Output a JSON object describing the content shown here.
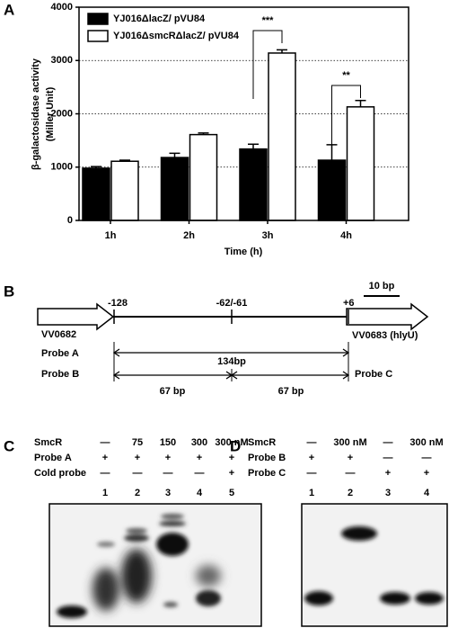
{
  "chart_data": {
    "type": "bar",
    "panel": "A",
    "ylabel": [
      "β-galactosidase activity",
      "(Miller Unit)"
    ],
    "xlabel": "Time (h)",
    "categories": [
      "1h",
      "2h",
      "3h",
      "4h"
    ],
    "series": [
      {
        "name": "YJ016ΔlacZ/ pVU84",
        "color": "#000000",
        "values": [
          980,
          1180,
          1340,
          1130
        ],
        "errors": [
          30,
          80,
          90,
          290
        ]
      },
      {
        "name": "YJ016ΔsmcRΔlacZ/ pVU84",
        "color": "#ffffff",
        "values": [
          1110,
          1610,
          3140,
          2130
        ],
        "errors": [
          20,
          30,
          60,
          120
        ]
      }
    ],
    "ylim": [
      0,
      4000
    ],
    "yticks": [
      0,
      1000,
      2000,
      3000,
      4000
    ],
    "grid": true,
    "annotations": [
      "***",
      "**"
    ]
  },
  "diagram": {
    "panel": "B",
    "scale_bar": "10 bp",
    "positions": [
      "-128",
      "-62/-61",
      "+6"
    ],
    "left_gene": "VV0682",
    "right_gene": "VV0683 (hlyU)",
    "probe_a": "Probe A",
    "probe_a_length": "134bp",
    "probe_b": "Probe B",
    "probe_b_halves": [
      "67 bp",
      "67 bp"
    ],
    "probe_c": "Probe C"
  },
  "gels": [
    {
      "panel": "C",
      "rows": [
        {
          "label": "SmcR",
          "cells": [
            "—",
            "75",
            "150",
            "300",
            "300 nM"
          ]
        },
        {
          "label": "Probe A",
          "cells": [
            "+",
            "+",
            "+",
            "+",
            "+"
          ]
        },
        {
          "label": "Cold probe",
          "cells": [
            "—",
            "—",
            "—",
            "—",
            "+"
          ]
        }
      ],
      "lanes": [
        "1",
        "2",
        "3",
        "4",
        "5"
      ]
    },
    {
      "panel": "D",
      "rows": [
        {
          "label": "SmcR",
          "cells": [
            "—",
            "300 nM",
            "—",
            "300 nM"
          ]
        },
        {
          "label": "Probe B",
          "cells": [
            "+",
            "+",
            "—",
            "—"
          ]
        },
        {
          "label": "Probe C",
          "cells": [
            "—",
            "—",
            "+",
            "+"
          ]
        }
      ],
      "lanes": [
        "1",
        "2",
        "3",
        "4"
      ]
    }
  ]
}
